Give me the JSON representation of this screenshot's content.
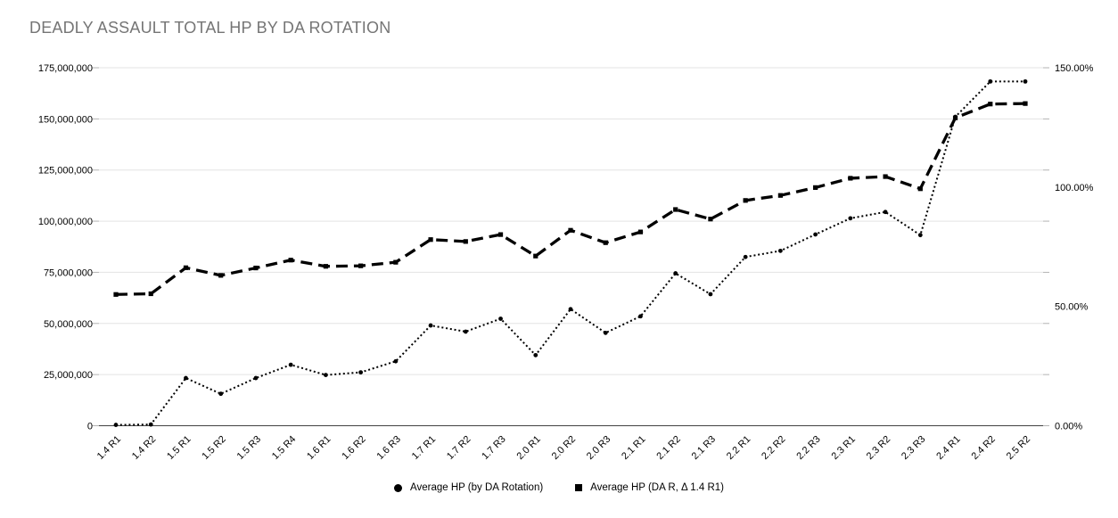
{
  "title": "DEADLY ASSAULT TOTAL HP BY DA ROTATION",
  "colors": {
    "title_text": "#757575",
    "axis_text": "#000000",
    "gridline": "#e3e3e3",
    "baseline": "#424242",
    "tick_stub": "#b3b3b3",
    "series": "#000000",
    "background": "#ffffff"
  },
  "chart_data": {
    "type": "line",
    "title": "DEADLY ASSAULT TOTAL HP BY DA ROTATION",
    "grid": true,
    "legend_position": "bottom",
    "categories": [
      "1.4 R1",
      "1.4 R2",
      "1.5 R1",
      "1.5 R2",
      "1.5 R3",
      "1.5 R4",
      "1.6 R1",
      "1.6 R2",
      "1.6 R3",
      "1.7 R1",
      "1.7 R2",
      "1.7 R3",
      "2.0 R1",
      "2.0 R2",
      "2.0 R3",
      "2.1 R1",
      "2.1 R2",
      "2.1 R3",
      "2.2 R1",
      "2.2 R2",
      "2.2 R3",
      "2.3 R1",
      "2.3 R2",
      "2.3 R3",
      "2.4 R1",
      "2.4 R2",
      "2.5 R2"
    ],
    "left_axis": {
      "min": 0,
      "max": 175000000,
      "tick_step": 25000000,
      "tick_labels": [
        "0",
        "25,000,000",
        "50,000,000",
        "75,000,000",
        "100,000,000",
        "125,000,000",
        "150,000,000",
        "175,000,000"
      ]
    },
    "right_axis": {
      "min": 0,
      "max": 150,
      "ticks": [
        0,
        50,
        100,
        150
      ],
      "tick_labels": [
        "0.00%",
        "50.00%",
        "100.00%",
        "150.00%"
      ]
    },
    "series": [
      {
        "name": "Average HP (by DA Rotation)",
        "axis": "left",
        "line_style": "dotted",
        "marker": "circle",
        "values": [
          400000,
          600000,
          23300000,
          15600000,
          23300000,
          29800000,
          24800000,
          26100000,
          31500000,
          49000000,
          46000000,
          52300000,
          34500000,
          57000000,
          45400000,
          53500000,
          74500000,
          64300000,
          82500000,
          85500000,
          93500000,
          101400000,
          104500000,
          93200000,
          151000000,
          168300000,
          168300000
        ]
      },
      {
        "name": "Average HP (DA R, Δ 1.4 R1)",
        "axis": "right",
        "line_style": "dashed",
        "marker": "square",
        "values": [
          55.0,
          55.3,
          66.2,
          63.0,
          66.1,
          69.4,
          66.8,
          67.0,
          68.5,
          78.0,
          77.2,
          80.1,
          71.1,
          81.9,
          76.7,
          81.2,
          90.6,
          86.6,
          94.4,
          96.5,
          99.8,
          103.7,
          104.4,
          99.3,
          129.0,
          134.8,
          135.0
        ]
      }
    ]
  }
}
